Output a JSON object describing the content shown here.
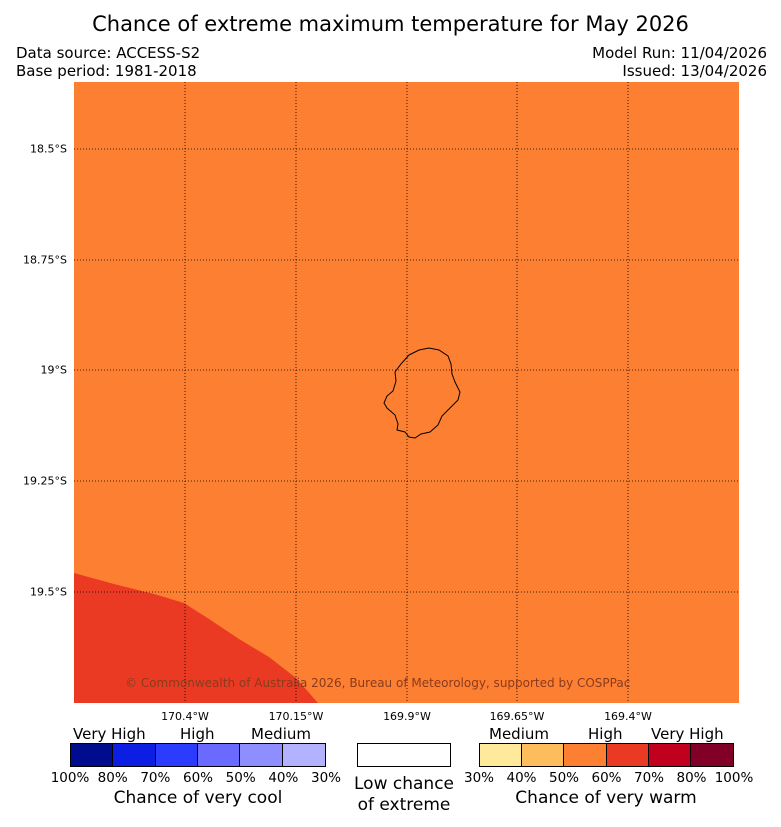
{
  "title": "Chance of extreme maximum temperature for May 2026",
  "meta": {
    "data_source": "Data source: ACCESS-S2",
    "base_period": "Base period: 1981-2018",
    "model_run": "Model Run: 11/04/2026",
    "issued": "Issued: 13/04/2026"
  },
  "map": {
    "background_color": "#fd8032",
    "region_color": "#ea3a24",
    "coastline_color": "#000000",
    "gridline_style": "dotted",
    "latitudes": [
      "18.5°S",
      "18.75°S",
      "19°S",
      "19.25°S",
      "19.5°S"
    ],
    "longitudes": [
      "170.4°W",
      "170.15°W",
      "169.9°W",
      "169.65°W",
      "169.4°W"
    ],
    "copyright": "© Commonwealth of Australia 2026, Bureau of Meteorology, supported by COSPPac"
  },
  "legend": {
    "cool": {
      "category_labels": [
        "Very High",
        "High",
        "Medium"
      ],
      "colors": [
        "#000c8e",
        "#0c1ee4",
        "#2c3cff",
        "#6a6aff",
        "#8e8eff",
        "#b2b2ff"
      ],
      "percent_labels": [
        "100%",
        "80%",
        "70%",
        "60%",
        "50%",
        "40%",
        "30%"
      ],
      "title": "Chance of very cool"
    },
    "neutral": {
      "label_line1": "Low chance",
      "label_line2": "of extreme",
      "color": "#ffffff"
    },
    "warm": {
      "category_labels": [
        "Medium",
        "High",
        "Very High"
      ],
      "colors": [
        "#ffe99b",
        "#fdbd5d",
        "#fd8032",
        "#ea3a24",
        "#c1001e",
        "#820027"
      ],
      "percent_labels": [
        "30%",
        "40%",
        "50%",
        "60%",
        "70%",
        "80%",
        "100%"
      ],
      "title": "Chance of very warm"
    }
  }
}
